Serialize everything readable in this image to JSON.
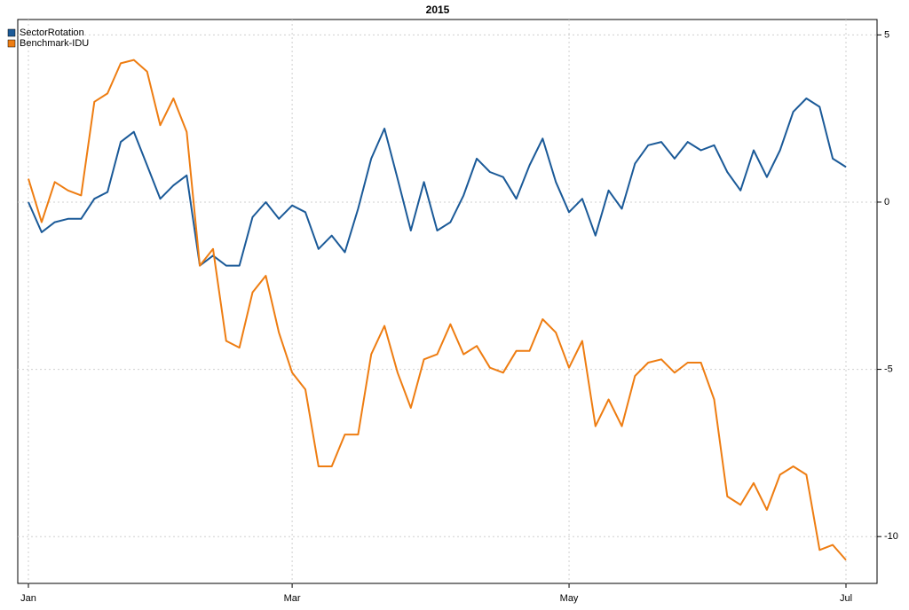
{
  "chart_data": {
    "type": "line",
    "title": "2015",
    "categories": [
      "Jan",
      null,
      null,
      null,
      null,
      null,
      null,
      null,
      null,
      null,
      null,
      null,
      null,
      null,
      null,
      null,
      null,
      null,
      null,
      null,
      "Mar",
      null,
      null,
      null,
      null,
      null,
      null,
      null,
      null,
      null,
      null,
      null,
      null,
      null,
      null,
      null,
      null,
      null,
      null,
      null,
      null,
      "May",
      null,
      null,
      null,
      null,
      null,
      null,
      null,
      null,
      null,
      null,
      null,
      null,
      null,
      null,
      null,
      null,
      null,
      null,
      null,
      null,
      "Jul"
    ],
    "series": [
      {
        "name": "SectorRotation",
        "color": "#1b5a98",
        "values": [
          0,
          -0.9,
          -0.6,
          -0.5,
          -0.5,
          0.1,
          0.3,
          1.8,
          2.1,
          1.1,
          0.1,
          0.5,
          0.8,
          -1.9,
          -1.6,
          -1.9,
          -1.9,
          -0.45,
          0,
          -0.5,
          -0.1,
          -0.3,
          -1.4,
          -1.0,
          -1.5,
          -0.2,
          1.3,
          2.2,
          0.7,
          -0.85,
          0.6,
          -0.85,
          -0.6,
          0.2,
          1.3,
          0.9,
          0.75,
          0.1,
          1.1,
          1.9,
          0.6,
          -0.3,
          0.1,
          -1.0,
          0.35,
          -0.2,
          1.15,
          1.7,
          1.8,
          1.3,
          1.8,
          1.55,
          1.7,
          0.9,
          0.35,
          1.55,
          0.75,
          1.55,
          2.7,
          3.1,
          2.85,
          1.3,
          1.05
        ]
      },
      {
        "name": "Benchmark-IDU",
        "color": "#ee7d12",
        "values": [
          0.7,
          -0.6,
          0.6,
          0.35,
          0.2,
          3.0,
          3.25,
          4.15,
          4.25,
          3.9,
          2.3,
          3.1,
          2.1,
          -1.9,
          -1.4,
          -4.15,
          -4.35,
          -2.7,
          -2.2,
          -3.9,
          -5.1,
          -5.6,
          -7.9,
          -7.9,
          -6.95,
          -6.95,
          -4.55,
          -3.7,
          -5.1,
          -6.15,
          -4.7,
          -4.55,
          -3.65,
          -4.55,
          -4.3,
          -4.95,
          -5.1,
          -4.45,
          -4.45,
          -3.5,
          -3.9,
          -4.95,
          -4.15,
          -6.7,
          -5.9,
          -6.7,
          -5.2,
          -4.8,
          -4.7,
          -5.1,
          -4.8,
          -4.8,
          -5.9,
          -8.8,
          -9.05,
          -8.4,
          -9.2,
          -8.15,
          -7.9,
          -8.15,
          -10.4,
          -10.25,
          -10.7
        ]
      }
    ],
    "ylim": [
      -11.4,
      5.46
    ],
    "yticks": [
      5,
      0,
      -5,
      -10
    ],
    "grid": true,
    "legend": "top-left"
  }
}
